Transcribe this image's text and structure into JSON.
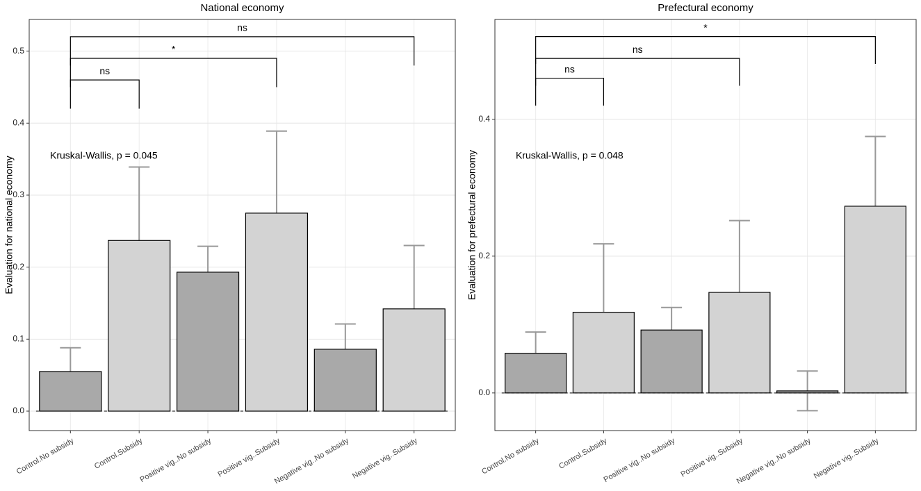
{
  "chart_data": [
    {
      "type": "bar",
      "title": "National economy",
      "y_label": "Evaluation for national economy",
      "categories": [
        "Control.No subsidy",
        "Control.Subsidy",
        "Positive vig..No subsidy",
        "Positive vig..Subsidy",
        "Negative vig..No subsidy",
        "Negative vig..Subsidy"
      ],
      "values": [
        0.055,
        0.237,
        0.193,
        0.275,
        0.086,
        0.142
      ],
      "errors": [
        0.033,
        0.102,
        0.036,
        0.114,
        0.035,
        0.088
      ],
      "colors": [
        "#a9a9a9",
        "#d3d3d3",
        "#a9a9a9",
        "#d3d3d3",
        "#a9a9a9",
        "#d3d3d3"
      ],
      "error_color": "#999999",
      "ylim": [
        -0.027,
        0.544
      ],
      "yticks": [
        {
          "value": 0,
          "label": "0.0"
        },
        0.1,
        0.2,
        0.3,
        0.4,
        0.5
      ],
      "grid": true,
      "annotation": "Kruskal-Wallis, p = 0.045",
      "comparisons": [
        {
          "from": "Control.No subsidy",
          "to": "Control.Subsidy",
          "label": "ns",
          "y": 0.46
        },
        {
          "from": "Control.No subsidy",
          "to": "Positive vig..Subsidy",
          "label": "*",
          "y": 0.49
        },
        {
          "from": "Control.No subsidy",
          "to": "Negative vig..Subsidy",
          "label": "ns",
          "y": 0.52
        }
      ]
    },
    {
      "type": "bar",
      "title": "Prefectural economy",
      "y_label": "Evaluation for prefectural economy",
      "categories": [
        "Control.No subsidy",
        "Control.Subsidy",
        "Positive vig..No subsidy",
        "Positive vig..Subsidy",
        "Negative vig..No subsidy",
        "Negative vig..Subsidy"
      ],
      "values": [
        0.058,
        0.118,
        0.092,
        0.147,
        0.003,
        0.273
      ],
      "errors": [
        0.031,
        0.1,
        0.033,
        0.105,
        0.029,
        0.102
      ],
      "colors": [
        "#a9a9a9",
        "#d3d3d3",
        "#a9a9a9",
        "#d3d3d3",
        "#a9a9a9",
        "#d3d3d3"
      ],
      "error_color": "#999999",
      "ylim": [
        -0.055,
        0.546
      ],
      "yticks": [
        {
          "value": 0,
          "label": "0.0"
        },
        0.2,
        0.4
      ],
      "grid": true,
      "annotation": "Kruskal-Wallis, p = 0.048",
      "comparisons": [
        {
          "from": "Control.No subsidy",
          "to": "Control.Subsidy",
          "label": "ns",
          "y": 0.46
        },
        {
          "from": "Control.No subsidy",
          "to": "Positive vig..Subsidy",
          "label": "ns",
          "y": 0.489
        },
        {
          "from": "Control.No subsidy",
          "to": "Negative vig..Subsidy",
          "label": "*",
          "y": 0.521
        }
      ]
    }
  ]
}
